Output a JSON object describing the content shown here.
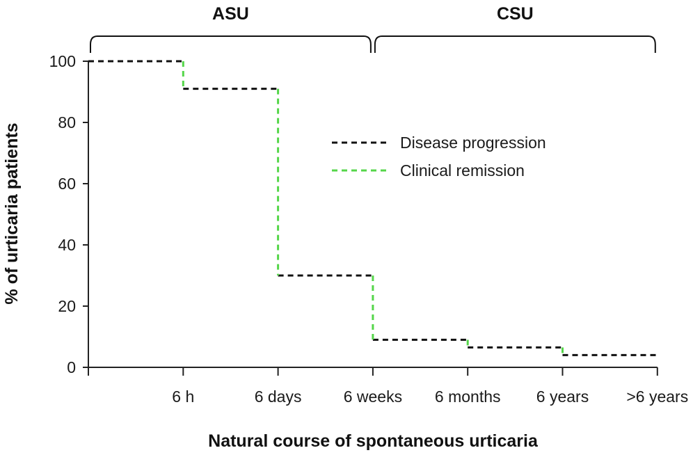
{
  "chart_data": {
    "type": "line",
    "step": true,
    "xlabel": "Natural course of spontaneous urticaria",
    "ylabel": "% of urticaria patients",
    "categories": [
      "",
      "6 h",
      "6 days",
      "6 weeks",
      "6 months",
      "6 years",
      ">6 years"
    ],
    "ylim": [
      0,
      100
    ],
    "yticks": [
      0,
      20,
      40,
      60,
      80,
      100
    ],
    "grid": false,
    "legend_position": "top-right",
    "series": [
      {
        "name": "Disease progression",
        "style": "dashed",
        "color": "#111111",
        "segments": [
          {
            "x_start": 0,
            "x_end": 1,
            "y": 100
          },
          {
            "x_start": 1,
            "x_end": 2,
            "y": 91
          },
          {
            "x_start": 2,
            "x_end": 3,
            "y": 30
          },
          {
            "x_start": 3,
            "x_end": 4,
            "y": 9
          },
          {
            "x_start": 4,
            "x_end": 5,
            "y": 6.5
          },
          {
            "x_start": 5,
            "x_end": 6,
            "y": 4
          }
        ]
      },
      {
        "name": "Clinical remission",
        "style": "dashed",
        "color": "#55d64a",
        "drops": [
          {
            "x": 1,
            "from": 100,
            "to": 91
          },
          {
            "x": 2,
            "from": 91,
            "to": 30
          },
          {
            "x": 3,
            "from": 30,
            "to": 9
          },
          {
            "x": 4,
            "from": 9,
            "to": 6.5
          },
          {
            "x": 5,
            "from": 6.5,
            "to": 4
          }
        ]
      }
    ],
    "phases": [
      {
        "label": "ASU",
        "x_start": 0,
        "x_end": 3
      },
      {
        "label": "CSU",
        "x_start": 3,
        "x_end": 6
      }
    ]
  }
}
